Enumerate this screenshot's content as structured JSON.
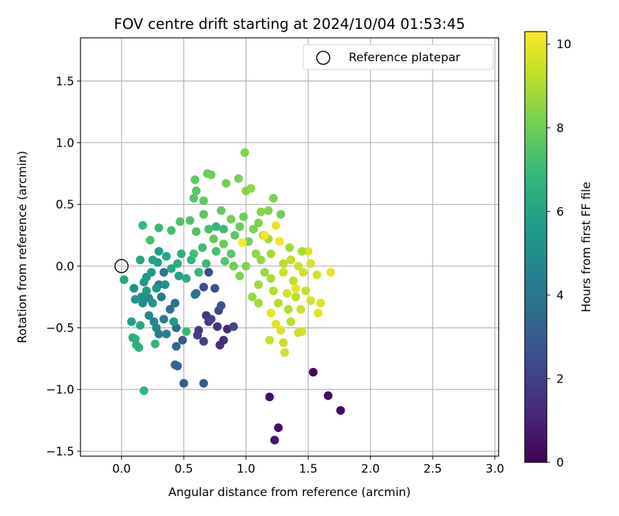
{
  "chart_data": {
    "type": "scatter",
    "title": "FOV centre drift starting at 2024/10/04 01:53:45",
    "xlabel": "Angular distance from reference (arcmin)",
    "ylabel": "Rotation from reference (arcmin)",
    "xlim": [
      -0.33,
      3.03
    ],
    "ylim": [
      -1.54,
      1.85
    ],
    "xticks": [
      0.0,
      0.5,
      1.0,
      1.5,
      2.0,
      2.5,
      3.0
    ],
    "xtick_labels": [
      "0.0",
      "0.5",
      "1.0",
      "1.5",
      "2.0",
      "2.5",
      "3.0"
    ],
    "yticks": [
      -1.5,
      -1.0,
      -0.5,
      0.0,
      0.5,
      1.0,
      1.5
    ],
    "ytick_labels": [
      "−1.5",
      "−1.0",
      "−0.5",
      "0.0",
      "0.5",
      "1.0",
      "1.5"
    ],
    "grid": true,
    "legend": {
      "position": "upper right",
      "entries": [
        "Reference platepar"
      ]
    },
    "reference_point": {
      "x": 0.0,
      "y": 0.0
    },
    "colorbar": {
      "label": "Hours from first FF file",
      "range": [
        0,
        10.3
      ],
      "ticks": [
        0,
        2,
        4,
        6,
        8,
        10
      ],
      "tick_labels": [
        "0",
        "2",
        "4",
        "6",
        "8",
        "10"
      ],
      "colormap": "viridis"
    },
    "colors": {
      "viridis": [
        "#440154",
        "#482878",
        "#3e4989",
        "#31688e",
        "#26828e",
        "#1f9e89",
        "#35b779",
        "#6ece58",
        "#b5de2b",
        "#fde725"
      ]
    },
    "points": [
      {
        "x": 1.54,
        "y": -0.86,
        "h": 0.1
      },
      {
        "x": 1.66,
        "y": -1.05,
        "h": 0.2
      },
      {
        "x": 1.76,
        "y": -1.17,
        "h": 0.3
      },
      {
        "x": 1.19,
        "y": -1.06,
        "h": 0.4
      },
      {
        "x": 1.26,
        "y": -1.31,
        "h": 0.5
      },
      {
        "x": 1.23,
        "y": -1.41,
        "h": 0.6
      },
      {
        "x": 0.85,
        "y": -0.51,
        "h": 1.2
      },
      {
        "x": 0.82,
        "y": -0.6,
        "h": 1.3
      },
      {
        "x": 0.79,
        "y": -0.64,
        "h": 1.4
      },
      {
        "x": 0.77,
        "y": -0.49,
        "h": 1.5
      },
      {
        "x": 0.7,
        "y": -0.45,
        "h": 1.6
      },
      {
        "x": 0.68,
        "y": -0.4,
        "h": 1.7
      },
      {
        "x": 0.62,
        "y": -0.52,
        "h": 1.8
      },
      {
        "x": 0.61,
        "y": -0.56,
        "h": 1.9
      },
      {
        "x": 0.66,
        "y": -0.61,
        "h": 2.0
      },
      {
        "x": 0.72,
        "y": -0.43,
        "h": 2.1
      },
      {
        "x": 0.78,
        "y": -0.36,
        "h": 2.2
      },
      {
        "x": 0.9,
        "y": -0.49,
        "h": 2.3
      },
      {
        "x": 0.66,
        "y": -0.17,
        "h": 2.4
      },
      {
        "x": 0.7,
        "y": -0.05,
        "h": 2.5
      },
      {
        "x": 0.75,
        "y": -0.18,
        "h": 2.6
      },
      {
        "x": 0.8,
        "y": -0.32,
        "h": 2.7
      },
      {
        "x": 0.49,
        "y": -0.6,
        "h": 2.9
      },
      {
        "x": 0.5,
        "y": -0.95,
        "h": 3.0
      },
      {
        "x": 0.66,
        "y": -0.95,
        "h": 3.1
      },
      {
        "x": 0.45,
        "y": -0.81,
        "h": 3.2
      },
      {
        "x": 0.43,
        "y": -0.8,
        "h": 3.3
      },
      {
        "x": 0.44,
        "y": -0.65,
        "h": 3.4
      },
      {
        "x": 0.44,
        "y": -0.5,
        "h": 3.5
      },
      {
        "x": 0.39,
        "y": -0.35,
        "h": 3.6
      },
      {
        "x": 0.43,
        "y": -0.3,
        "h": 3.7
      },
      {
        "x": 0.59,
        "y": -0.23,
        "h": 3.8
      },
      {
        "x": 0.6,
        "y": -0.22,
        "h": 3.9
      },
      {
        "x": 0.34,
        "y": -0.05,
        "h": 4.0
      },
      {
        "x": 0.3,
        "y": -0.15,
        "h": 4.1
      },
      {
        "x": 0.32,
        "y": -0.25,
        "h": 4.2
      },
      {
        "x": 0.34,
        "y": -0.43,
        "h": 4.3
      },
      {
        "x": 0.36,
        "y": -0.55,
        "h": 4.4
      },
      {
        "x": 0.3,
        "y": -0.55,
        "h": 4.5
      },
      {
        "x": 0.28,
        "y": -0.5,
        "h": 4.6
      },
      {
        "x": 0.26,
        "y": -0.45,
        "h": 4.7
      },
      {
        "x": 0.22,
        "y": -0.4,
        "h": 4.8
      },
      {
        "x": 0.22,
        "y": -0.26,
        "h": 4.9
      },
      {
        "x": 0.17,
        "y": -0.3,
        "h": 5.0
      },
      {
        "x": 0.16,
        "y": -0.25,
        "h": 5.1
      },
      {
        "x": 0.1,
        "y": -0.18,
        "h": 5.2
      },
      {
        "x": 0.11,
        "y": -0.27,
        "h": 5.3
      },
      {
        "x": 0.18,
        "y": -0.13,
        "h": 5.4
      },
      {
        "x": 0.2,
        "y": -0.09,
        "h": 5.5
      },
      {
        "x": 0.24,
        "y": -0.05,
        "h": 5.6
      },
      {
        "x": 0.29,
        "y": 0.03,
        "h": 5.7
      },
      {
        "x": 0.3,
        "y": 0.12,
        "h": 5.8
      },
      {
        "x": 0.25,
        "y": 0.05,
        "h": 5.9
      },
      {
        "x": 0.15,
        "y": 0.05,
        "h": 6.0
      },
      {
        "x": 0.02,
        "y": -0.11,
        "h": 6.1
      },
      {
        "x": 0.15,
        "y": -0.48,
        "h": 6.2
      },
      {
        "x": 0.11,
        "y": -0.59,
        "h": 6.3
      },
      {
        "x": 0.09,
        "y": -0.58,
        "h": 6.4
      },
      {
        "x": 0.12,
        "y": -0.64,
        "h": 6.5
      },
      {
        "x": 0.14,
        "y": -0.66,
        "h": 6.6
      },
      {
        "x": 0.18,
        "y": -1.01,
        "h": 6.7
      },
      {
        "x": 0.27,
        "y": -0.63,
        "h": 6.8
      },
      {
        "x": 0.17,
        "y": 0.33,
        "h": 6.9
      },
      {
        "x": 0.3,
        "y": 0.31,
        "h": 7.0
      },
      {
        "x": 0.4,
        "y": 0.29,
        "h": 7.1
      },
      {
        "x": 0.23,
        "y": 0.21,
        "h": 7.2
      },
      {
        "x": 0.47,
        "y": 0.36,
        "h": 7.3
      },
      {
        "x": 0.55,
        "y": 0.37,
        "h": 7.4
      },
      {
        "x": 0.58,
        "y": 0.55,
        "h": 7.5
      },
      {
        "x": 0.6,
        "y": 0.61,
        "h": 7.6
      },
      {
        "x": 0.59,
        "y": 0.7,
        "h": 7.7
      },
      {
        "x": 0.66,
        "y": 0.53,
        "h": 7.8
      },
      {
        "x": 0.69,
        "y": 0.75,
        "h": 7.9
      },
      {
        "x": 0.72,
        "y": 0.74,
        "h": 8.0
      },
      {
        "x": 0.84,
        "y": 0.67,
        "h": 8.1
      },
      {
        "x": 0.94,
        "y": 0.71,
        "h": 8.2
      },
      {
        "x": 0.99,
        "y": 0.92,
        "h": 8.3
      },
      {
        "x": 1.0,
        "y": 0.61,
        "h": 8.4
      },
      {
        "x": 1.04,
        "y": 0.63,
        "h": 8.5
      },
      {
        "x": 0.76,
        "y": 0.32,
        "h": 6.8
      },
      {
        "x": 0.82,
        "y": 0.3,
        "h": 7.0
      },
      {
        "x": 0.76,
        "y": 0.12,
        "h": 7.2
      },
      {
        "x": 0.83,
        "y": 0.04,
        "h": 7.5
      },
      {
        "x": 0.88,
        "y": 0.1,
        "h": 7.6
      },
      {
        "x": 0.91,
        "y": 0.25,
        "h": 7.7
      },
      {
        "x": 0.95,
        "y": 0.32,
        "h": 7.9
      },
      {
        "x": 0.98,
        "y": 0.4,
        "h": 8.0
      },
      {
        "x": 1.02,
        "y": 0.2,
        "h": 8.1
      },
      {
        "x": 1.06,
        "y": 0.3,
        "h": 8.2
      },
      {
        "x": 1.1,
        "y": 0.35,
        "h": 8.3
      },
      {
        "x": 1.14,
        "y": 0.25,
        "h": 8.6
      },
      {
        "x": 1.18,
        "y": 0.22,
        "h": 8.8
      },
      {
        "x": 1.22,
        "y": 0.55,
        "h": 8.2
      },
      {
        "x": 1.28,
        "y": 0.42,
        "h": 8.0
      },
      {
        "x": 1.2,
        "y": 0.1,
        "h": 8.9
      },
      {
        "x": 1.3,
        "y": 0.02,
        "h": 9.2
      },
      {
        "x": 1.36,
        "y": 0.05,
        "h": 9.4
      },
      {
        "x": 1.42,
        "y": 0.0,
        "h": 9.5
      },
      {
        "x": 1.46,
        "y": -0.05,
        "h": 9.6
      },
      {
        "x": 1.5,
        "y": 0.12,
        "h": 9.8
      },
      {
        "x": 1.52,
        "y": 0.02,
        "h": 9.7
      },
      {
        "x": 1.57,
        "y": -0.07,
        "h": 9.6
      },
      {
        "x": 1.6,
        "y": -0.3,
        "h": 9.8
      },
      {
        "x": 1.58,
        "y": -0.38,
        "h": 9.9
      },
      {
        "x": 1.68,
        "y": -0.05,
        "h": 10.0
      },
      {
        "x": 1.45,
        "y": -0.53,
        "h": 9.7
      },
      {
        "x": 1.42,
        "y": -0.54,
        "h": 9.6
      },
      {
        "x": 1.3,
        "y": -0.62,
        "h": 9.5
      },
      {
        "x": 1.31,
        "y": -0.7,
        "h": 9.7
      },
      {
        "x": 1.19,
        "y": -0.6,
        "h": 9.4
      },
      {
        "x": 1.28,
        "y": -0.52,
        "h": 9.8
      },
      {
        "x": 1.24,
        "y": -0.47,
        "h": 9.9
      },
      {
        "x": 1.2,
        "y": -0.38,
        "h": 10.0
      },
      {
        "x": 1.27,
        "y": 0.2,
        "h": 10.1
      },
      {
        "x": 1.24,
        "y": 0.33,
        "h": 10.0
      },
      {
        "x": 1.15,
        "y": 0.25,
        "h": 10.2
      },
      {
        "x": 0.97,
        "y": 0.19,
        "h": 10.3
      },
      {
        "x": 1.45,
        "y": 0.12,
        "h": 9.0
      },
      {
        "x": 1.35,
        "y": 0.15,
        "h": 8.9
      },
      {
        "x": 1.38,
        "y": -0.12,
        "h": 9.3
      },
      {
        "x": 1.4,
        "y": -0.25,
        "h": 9.2
      },
      {
        "x": 1.44,
        "y": -0.35,
        "h": 9.5
      },
      {
        "x": 1.34,
        "y": -0.35,
        "h": 9.1
      },
      {
        "x": 1.36,
        "y": -0.45,
        "h": 9.3
      },
      {
        "x": 1.48,
        "y": -0.2,
        "h": 9.4
      },
      {
        "x": 1.2,
        "y": -0.1,
        "h": 9.0
      },
      {
        "x": 1.22,
        "y": -0.2,
        "h": 9.1
      },
      {
        "x": 1.1,
        "y": -0.15,
        "h": 8.8
      },
      {
        "x": 1.05,
        "y": -0.25,
        "h": 8.7
      },
      {
        "x": 1.1,
        "y": -0.3,
        "h": 8.9
      },
      {
        "x": 1.12,
        "y": 0.05,
        "h": 8.6
      },
      {
        "x": 1.08,
        "y": 0.1,
        "h": 8.5
      },
      {
        "x": 1.0,
        "y": 0.0,
        "h": 8.4
      },
      {
        "x": 0.95,
        "y": -0.08,
        "h": 8.3
      },
      {
        "x": 0.9,
        "y": 0.0,
        "h": 8.0
      },
      {
        "x": 0.82,
        "y": 0.18,
        "h": 7.9
      },
      {
        "x": 0.74,
        "y": 0.22,
        "h": 7.8
      },
      {
        "x": 0.7,
        "y": 0.3,
        "h": 7.3
      },
      {
        "x": 0.65,
        "y": 0.15,
        "h": 7.1
      },
      {
        "x": 0.68,
        "y": 0.02,
        "h": 7.0
      },
      {
        "x": 0.62,
        "y": -0.05,
        "h": 6.8
      },
      {
        "x": 0.56,
        "y": 0.05,
        "h": 6.6
      },
      {
        "x": 0.52,
        "y": -0.1,
        "h": 6.4
      },
      {
        "x": 0.48,
        "y": 0.1,
        "h": 6.5
      },
      {
        "x": 0.45,
        "y": 0.02,
        "h": 6.3
      },
      {
        "x": 0.4,
        "y": -0.02,
        "h": 6.2
      },
      {
        "x": 0.36,
        "y": 0.08,
        "h": 6.1
      },
      {
        "x": 0.2,
        "y": -0.2,
        "h": 5.7
      },
      {
        "x": 0.08,
        "y": -0.45,
        "h": 5.8
      },
      {
        "x": 0.25,
        "y": -0.3,
        "h": 5.4
      },
      {
        "x": 0.28,
        "y": -0.18,
        "h": 5.3
      },
      {
        "x": 0.35,
        "y": -0.15,
        "h": 5.2
      },
      {
        "x": 0.42,
        "y": -0.45,
        "h": 5.6
      },
      {
        "x": 0.52,
        "y": -0.53,
        "h": 7.0
      },
      {
        "x": 0.46,
        "y": -0.08,
        "h": 5.9
      },
      {
        "x": 0.58,
        "y": 0.1,
        "h": 7.2
      },
      {
        "x": 0.6,
        "y": 0.28,
        "h": 7.4
      },
      {
        "x": 0.66,
        "y": 0.42,
        "h": 7.6
      },
      {
        "x": 0.8,
        "y": 0.45,
        "h": 7.8
      },
      {
        "x": 0.88,
        "y": 0.38,
        "h": 8.1
      },
      {
        "x": 1.12,
        "y": 0.44,
        "h": 8.4
      },
      {
        "x": 1.18,
        "y": 0.45,
        "h": 8.3
      },
      {
        "x": 1.3,
        "y": -0.05,
        "h": 9.5
      },
      {
        "x": 1.33,
        "y": -0.22,
        "h": 9.6
      },
      {
        "x": 1.4,
        "y": -0.18,
        "h": 9.9
      },
      {
        "x": 1.52,
        "y": -0.28,
        "h": 9.7
      },
      {
        "x": 1.26,
        "y": -0.3,
        "h": 9.2
      },
      {
        "x": 1.15,
        "y": -0.05,
        "h": 8.7
      }
    ]
  }
}
